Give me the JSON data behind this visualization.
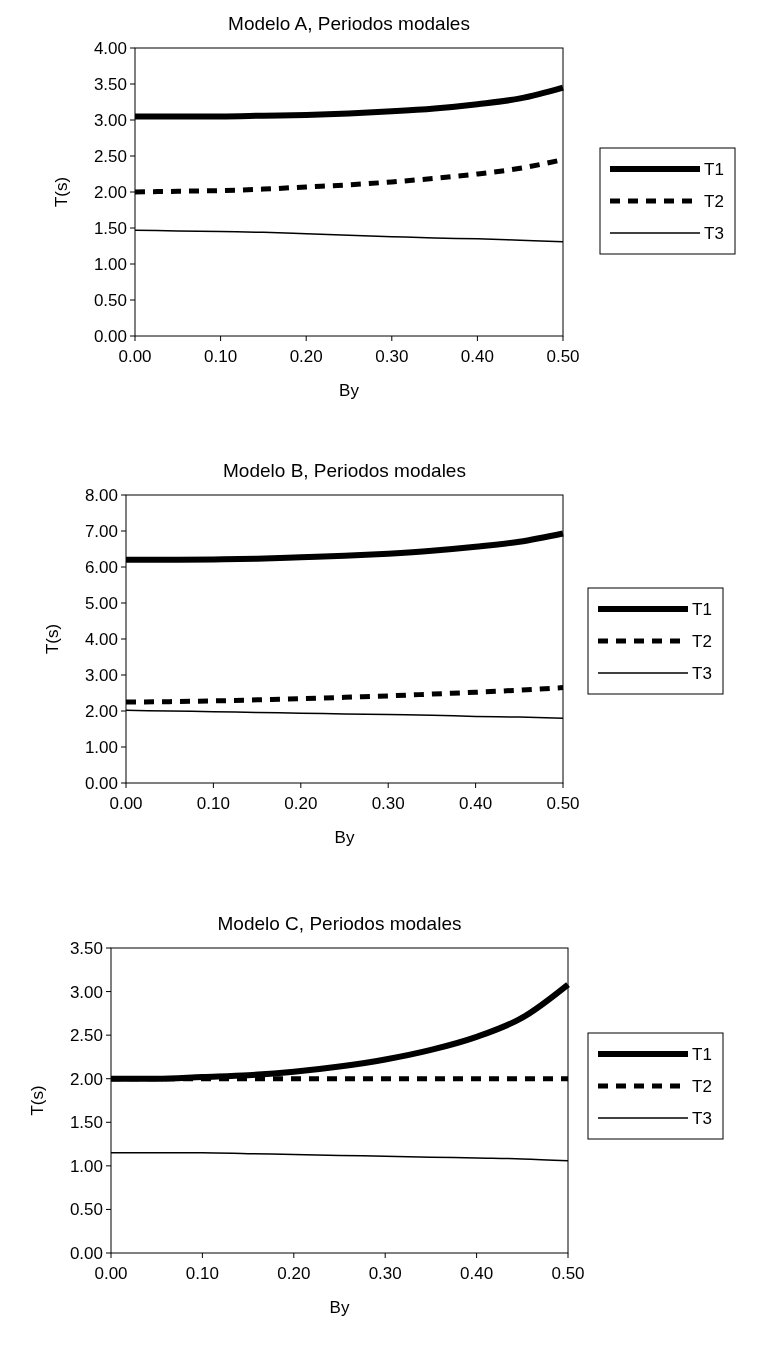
{
  "chart_data": [
    {
      "type": "line",
      "title": "Modelo A, Periodos modales",
      "xlabel": "By",
      "ylabel": "T(s)",
      "x": [
        0,
        0.05,
        0.1,
        0.15,
        0.2,
        0.25,
        0.3,
        0.35,
        0.4,
        0.45,
        0.5
      ],
      "xlim": [
        0,
        0.5
      ],
      "xticks": [
        {
          "value": 0,
          "label": "0.00"
        },
        {
          "value": 0.1,
          "label": "0.10"
        },
        {
          "value": 0.2,
          "label": "0.20"
        },
        {
          "value": 0.3,
          "label": "0.30"
        },
        {
          "value": 0.4,
          "label": "0.40"
        },
        {
          "value": 0.5,
          "label": "0.50"
        }
      ],
      "ylim": [
        0,
        4
      ],
      "yticks": [
        {
          "value": 0,
          "label": "0.00"
        },
        {
          "value": 0.5,
          "label": "0.50"
        },
        {
          "value": 1,
          "label": "1.00"
        },
        {
          "value": 1.5,
          "label": "1.50"
        },
        {
          "value": 2,
          "label": "2.00"
        },
        {
          "value": 2.5,
          "label": "2.50"
        },
        {
          "value": 3,
          "label": "3.00"
        },
        {
          "value": 3.5,
          "label": "3.50"
        },
        {
          "value": 4,
          "label": "4.00"
        }
      ],
      "grid": false,
      "legend": "right",
      "series": [
        {
          "name": "T1",
          "color": "#000000",
          "line_style": "solid",
          "values": [
            3.05,
            3.05,
            3.05,
            3.06,
            3.07,
            3.09,
            3.12,
            3.16,
            3.22,
            3.3,
            3.45
          ]
        },
        {
          "name": "T2",
          "color": "#000000",
          "line_style": "dashed",
          "values": [
            2.0,
            2.01,
            2.02,
            2.04,
            2.07,
            2.1,
            2.14,
            2.19,
            2.25,
            2.33,
            2.45
          ]
        },
        {
          "name": "T3",
          "color": "#000000",
          "line_style": "solid",
          "values": [
            1.47,
            1.46,
            1.45,
            1.44,
            1.42,
            1.4,
            1.38,
            1.36,
            1.35,
            1.33,
            1.31
          ]
        }
      ]
    },
    {
      "type": "line",
      "title": "Modelo B, Periodos modales",
      "xlabel": "By",
      "ylabel": "T(s)",
      "x": [
        0,
        0.05,
        0.1,
        0.15,
        0.2,
        0.25,
        0.3,
        0.35,
        0.4,
        0.45,
        0.5
      ],
      "xlim": [
        0,
        0.5
      ],
      "xticks": [
        {
          "value": 0,
          "label": "0.00"
        },
        {
          "value": 0.1,
          "label": "0.10"
        },
        {
          "value": 0.2,
          "label": "0.20"
        },
        {
          "value": 0.3,
          "label": "0.30"
        },
        {
          "value": 0.4,
          "label": "0.40"
        },
        {
          "value": 0.5,
          "label": "0.50"
        }
      ],
      "ylim": [
        0,
        8
      ],
      "yticks": [
        {
          "value": 0,
          "label": "0.00"
        },
        {
          "value": 1,
          "label": "1.00"
        },
        {
          "value": 2,
          "label": "2.00"
        },
        {
          "value": 3,
          "label": "3.00"
        },
        {
          "value": 4,
          "label": "4.00"
        },
        {
          "value": 5,
          "label": "5.00"
        },
        {
          "value": 6,
          "label": "6.00"
        },
        {
          "value": 7,
          "label": "7.00"
        },
        {
          "value": 8,
          "label": "8.00"
        }
      ],
      "grid": false,
      "legend": "right",
      "series": [
        {
          "name": "T1",
          "color": "#000000",
          "line_style": "solid",
          "values": [
            6.2,
            6.2,
            6.21,
            6.23,
            6.27,
            6.31,
            6.37,
            6.45,
            6.56,
            6.7,
            6.93
          ]
        },
        {
          "name": "T2",
          "color": "#000000",
          "line_style": "dashed",
          "values": [
            2.25,
            2.26,
            2.28,
            2.31,
            2.34,
            2.38,
            2.42,
            2.47,
            2.52,
            2.58,
            2.65
          ]
        },
        {
          "name": "T3",
          "color": "#000000",
          "line_style": "solid",
          "values": [
            2.02,
            2.0,
            1.98,
            1.96,
            1.94,
            1.92,
            1.9,
            1.88,
            1.85,
            1.83,
            1.8
          ]
        }
      ]
    },
    {
      "type": "line",
      "title": "Modelo C, Periodos modales",
      "xlabel": "By",
      "ylabel": "T(s)",
      "x": [
        0,
        0.05,
        0.1,
        0.15,
        0.2,
        0.25,
        0.3,
        0.35,
        0.4,
        0.45,
        0.5
      ],
      "xlim": [
        0,
        0.5
      ],
      "xticks": [
        {
          "value": 0,
          "label": "0.00"
        },
        {
          "value": 0.1,
          "label": "0.10"
        },
        {
          "value": 0.2,
          "label": "0.20"
        },
        {
          "value": 0.3,
          "label": "0.30"
        },
        {
          "value": 0.4,
          "label": "0.40"
        },
        {
          "value": 0.5,
          "label": "0.50"
        }
      ],
      "ylim": [
        0,
        3.5
      ],
      "yticks": [
        {
          "value": 0,
          "label": "0.00"
        },
        {
          "value": 0.5,
          "label": "0.50"
        },
        {
          "value": 1,
          "label": "1.00"
        },
        {
          "value": 1.5,
          "label": "1.50"
        },
        {
          "value": 2,
          "label": "2.00"
        },
        {
          "value": 2.5,
          "label": "2.50"
        },
        {
          "value": 3,
          "label": "3.00"
        },
        {
          "value": 3.5,
          "label": "3.50"
        }
      ],
      "grid": false,
      "legend": "right",
      "series": [
        {
          "name": "T1",
          "color": "#000000",
          "line_style": "solid",
          "values": [
            2.0,
            2.0,
            2.02,
            2.04,
            2.08,
            2.14,
            2.22,
            2.33,
            2.48,
            2.7,
            3.08
          ]
        },
        {
          "name": "T2",
          "color": "#000000",
          "line_style": "dashed",
          "values": [
            2.0,
            2.0,
            2.0,
            2.0,
            2.0,
            2.0,
            2.0,
            2.0,
            2.0,
            2.0,
            2.0
          ]
        },
        {
          "name": "T3",
          "color": "#000000",
          "line_style": "solid",
          "values": [
            1.15,
            1.15,
            1.15,
            1.14,
            1.13,
            1.12,
            1.11,
            1.1,
            1.09,
            1.08,
            1.06
          ]
        }
      ]
    }
  ]
}
